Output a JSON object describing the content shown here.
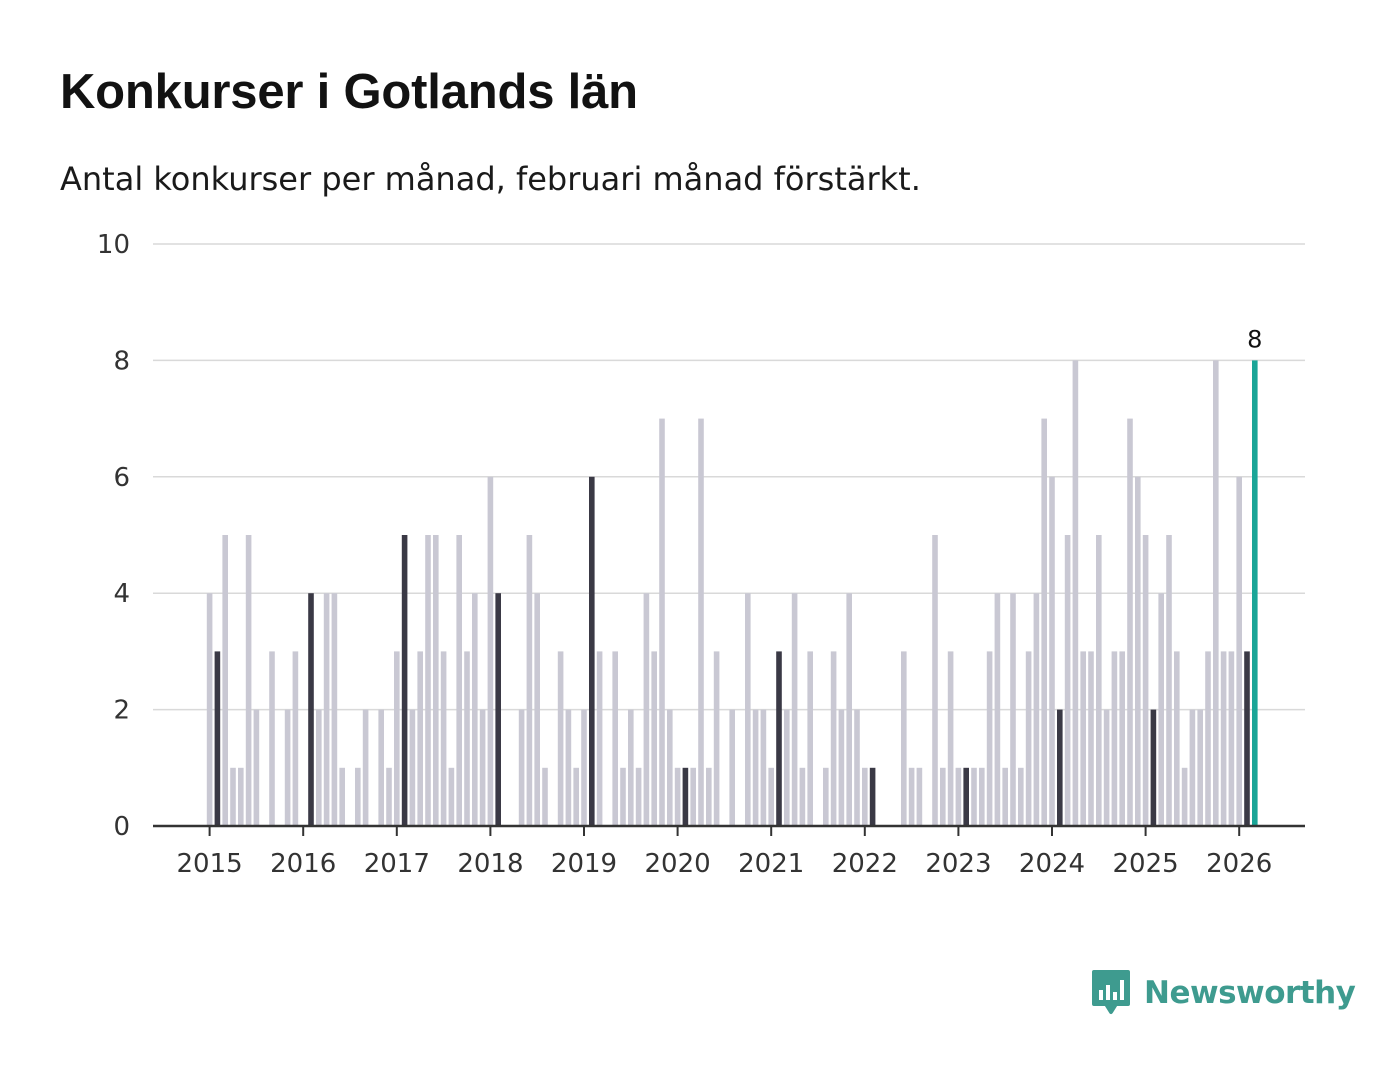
{
  "title": "Konkurser i Gotlands län",
  "subtitle": "Antal konkurser per månad, februari månad förstärkt.",
  "brand": {
    "name": "Newsworthy",
    "icon": "newsworthy-logo-icon",
    "color": "#3e9b8f"
  },
  "colors": {
    "normal": "#c9c8d3",
    "february": "#3a3945",
    "latest": "#1aa597",
    "grid": "#d9d9d9",
    "axis": "#333333"
  },
  "chart_data": {
    "type": "bar",
    "title": "Konkurser i Gotlands län",
    "xlabel": "",
    "ylabel": "",
    "ylim": [
      0,
      10
    ],
    "yticks": [
      "0",
      "2",
      "4",
      "6",
      "8",
      "10"
    ],
    "grid": true,
    "start": "2015-01",
    "x_ticks": [
      "2015",
      "2016",
      "2017",
      "2018",
      "2019",
      "2020",
      "2021",
      "2022",
      "2023",
      "2024",
      "2025",
      "2026"
    ],
    "highlight": "februari",
    "latest_label": "8",
    "values": [
      4,
      3,
      5,
      1,
      1,
      5,
      2,
      0,
      3,
      0,
      2,
      3,
      0,
      4,
      2,
      4,
      4,
      1,
      0,
      1,
      2,
      0,
      2,
      1,
      3,
      5,
      2,
      3,
      5,
      5,
      3,
      1,
      5,
      3,
      4,
      2,
      6,
      4,
      0,
      0,
      2,
      5,
      4,
      1,
      0,
      3,
      2,
      1,
      2,
      6,
      3,
      0,
      3,
      1,
      2,
      1,
      4,
      3,
      7,
      2,
      1,
      1,
      1,
      7,
      1,
      3,
      0,
      2,
      0,
      4,
      2,
      2,
      1,
      3,
      2,
      4,
      1,
      3,
      0,
      1,
      3,
      2,
      4,
      2,
      1,
      1,
      0,
      0,
      0,
      3,
      1,
      1,
      0,
      5,
      1,
      3,
      1,
      1,
      1,
      1,
      3,
      4,
      1,
      4,
      1,
      3,
      4,
      7,
      6,
      2,
      5,
      8,
      3,
      3,
      5,
      2,
      3,
      3,
      7,
      6,
      5,
      2,
      4,
      5,
      3,
      1,
      2,
      2,
      3,
      8,
      3,
      3,
      6,
      3,
      8
    ]
  }
}
